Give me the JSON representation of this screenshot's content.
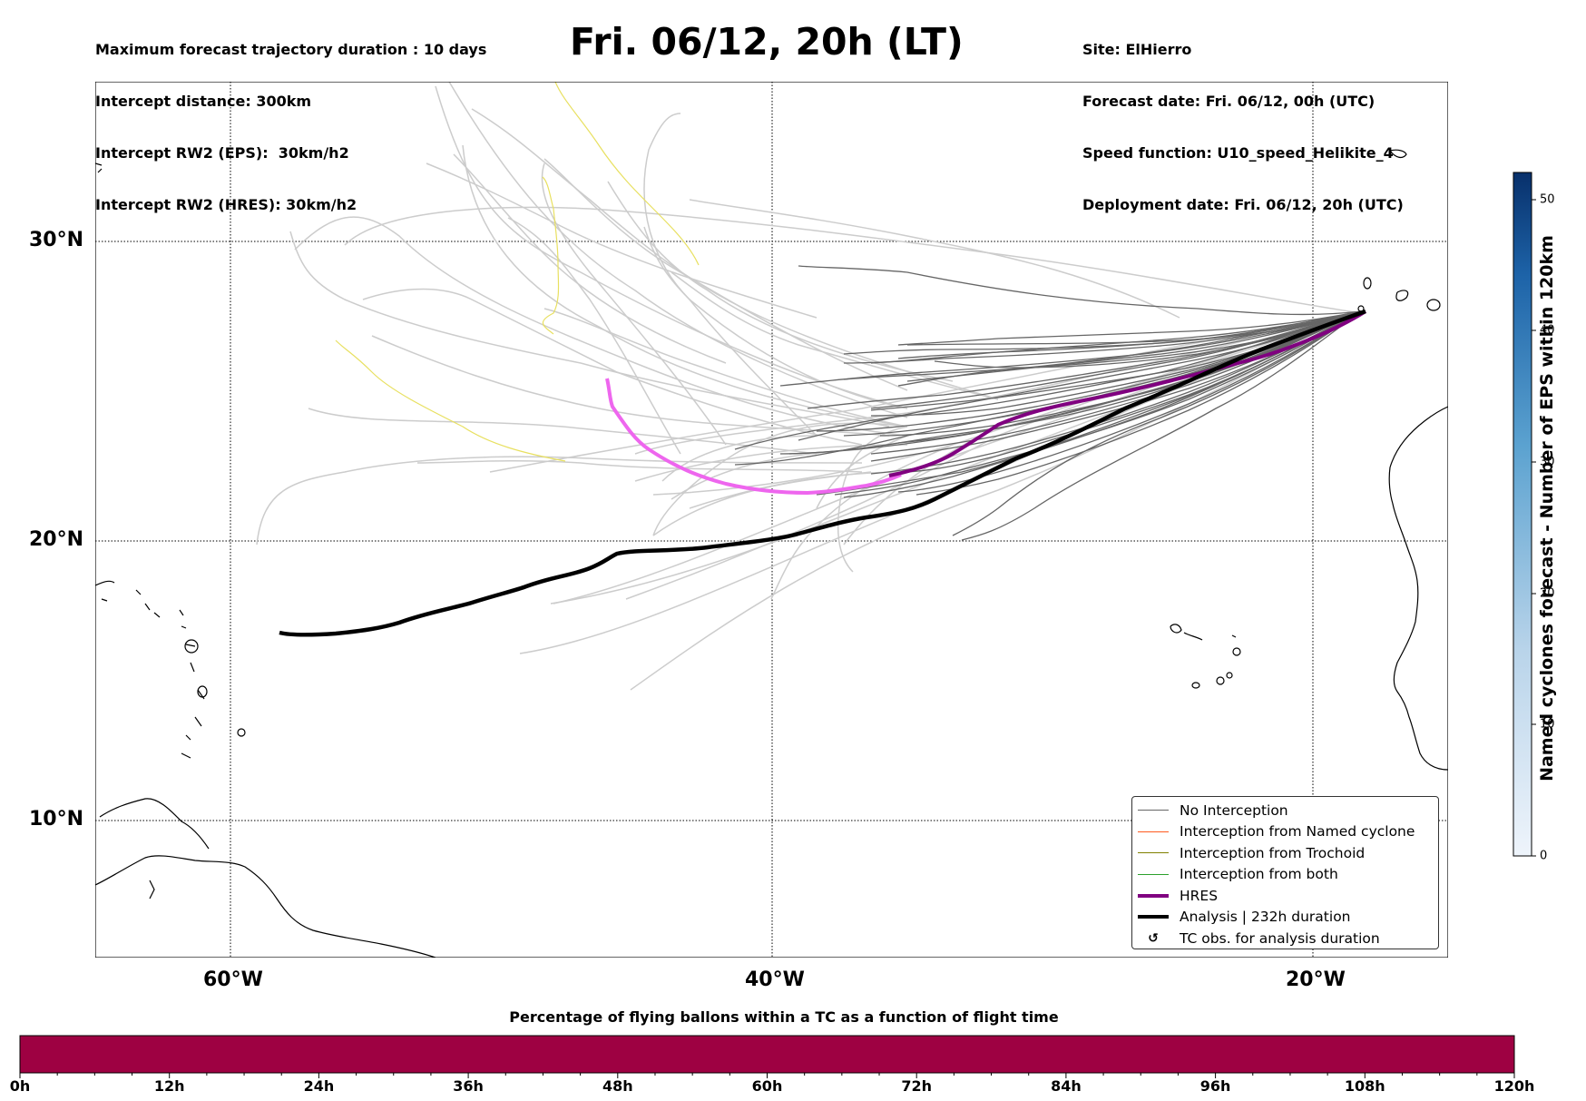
{
  "header": {
    "left": [
      "Maximum forecast trajectory duration : 10 days",
      "Intercept distance: 300km",
      "Intercept RW2 (EPS):  30km/h2",
      "Intercept RW2 (HRES): 30km/h2"
    ],
    "title": "Fri. 06/12, 20h (LT)",
    "right": [
      "Site: ElHierro",
      "Forecast date: Fri. 06/12, 00h (UTC)",
      "Speed function: U10_speed_Helikite_4",
      "Deployment date: Fri. 06/12, 20h (UTC)"
    ]
  },
  "map": {
    "lat_labels": [
      "30°N",
      "20°N",
      "10°N"
    ],
    "lon_labels": [
      "60°W",
      "40°W",
      "20°W"
    ],
    "colors": {
      "no_interception": "#666666",
      "eps_faded": "#cccccc",
      "named_cyclone": "#ff5a1f",
      "trochoid": "#808000",
      "both": "#2ca02c",
      "hres": "#800080",
      "hres_faded": "#ee66ee",
      "analysis": "#000000",
      "yellow_traj": "#eeee55"
    }
  },
  "legend": {
    "items": [
      {
        "label": "No Interception",
        "icon": "thin-grey-line"
      },
      {
        "label": "Interception from Named cyclone",
        "icon": "thin-orange-line"
      },
      {
        "label": "Interception from Trochoid",
        "icon": "thin-olive-line"
      },
      {
        "label": "Interception from both",
        "icon": "thin-green-line"
      },
      {
        "label": "HRES",
        "icon": "thick-purple-line"
      },
      {
        "label": "Analysis | 232h duration",
        "icon": "thick-black-line"
      },
      {
        "label": "TC obs. for analysis duration",
        "icon": "hurricane-icon"
      }
    ]
  },
  "colorbar": {
    "label": "Named cyclones forecast - Number of EPS within 120km",
    "ticks": [
      "0",
      "10",
      "20",
      "30",
      "40",
      "50"
    ],
    "range": [
      0,
      52
    ],
    "color_low": "#e8f1fb",
    "color_high": "#08306b"
  },
  "flight_bar": {
    "title": "Percentage of flying ballons within a TC as a function of flight time",
    "ticks": [
      "0h",
      "12h",
      "24h",
      "36h",
      "48h",
      "60h",
      "72h",
      "84h",
      "96h",
      "108h",
      "120h"
    ],
    "fill_color": "#9e0142"
  }
}
